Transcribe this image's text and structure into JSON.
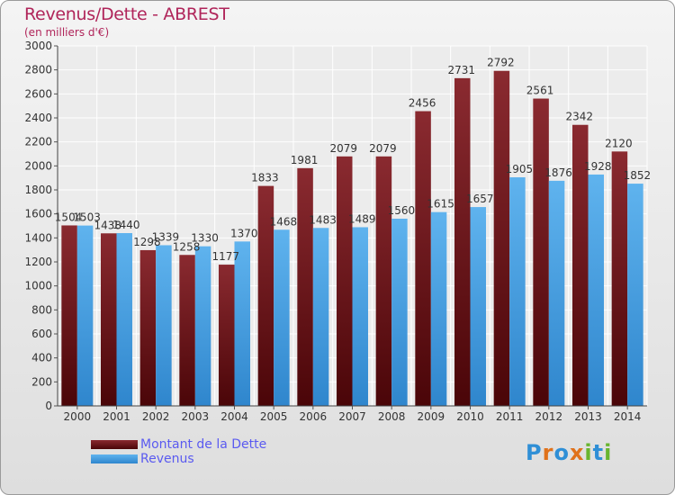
{
  "header": {
    "title": "Revenus/Dette - ABREST",
    "subtitle": "(en milliers d'€)"
  },
  "legend": [
    {
      "name": "Montant de la Dette",
      "color": "#6b0d13"
    },
    {
      "name": "Revenus",
      "color": "#3c9be0"
    }
  ],
  "logo": {
    "text": "Proxiti",
    "letters": [
      "P",
      "r",
      "o",
      "x",
      "i",
      "t",
      "i"
    ],
    "colors": [
      "#2f8fd6",
      "#e0721b",
      "#2f8fd6",
      "#e0721b",
      "#69b52f",
      "#2f8fd6",
      "#69b52f"
    ]
  },
  "chart_data": {
    "type": "bar",
    "categories": [
      "2000",
      "2001",
      "2002",
      "2003",
      "2004",
      "2005",
      "2006",
      "2007",
      "2008",
      "2009",
      "2010",
      "2011",
      "2012",
      "2013",
      "2014"
    ],
    "series": [
      {
        "name": "Montant de la Dette",
        "color": "#7a1a22",
        "values": [
          1504,
          1438,
          1298,
          1258,
          1177,
          1833,
          1981,
          2079,
          2079,
          2456,
          2731,
          2792,
          2561,
          2342,
          2120
        ]
      },
      {
        "name": "Revenus",
        "color": "#4ea6e6",
        "values": [
          1503,
          1440,
          1339,
          1330,
          1370,
          1468,
          1483,
          1489,
          1560,
          1615,
          1657,
          1905,
          1876,
          1928,
          1852
        ]
      }
    ],
    "ylim": [
      0,
      3000
    ],
    "yticks": [
      0,
      200,
      400,
      600,
      800,
      1000,
      1200,
      1400,
      1600,
      1800,
      2000,
      2200,
      2400,
      2600,
      2800,
      3000
    ],
    "grid": true,
    "legend_position": "bottom-left"
  }
}
